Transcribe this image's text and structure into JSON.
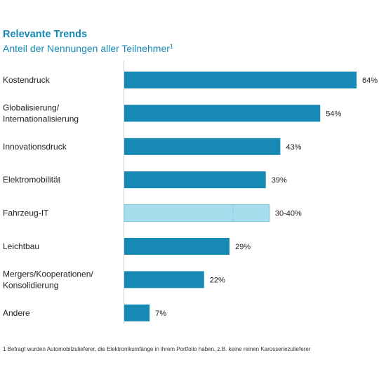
{
  "chart_data": {
    "type": "bar",
    "orientation": "horizontal",
    "title": "Relevante Trends",
    "subtitle": "Anteil der Nennungen aller Teilnehmer",
    "subtitle_superscript": "1",
    "categories": [
      [
        "Kostendruck"
      ],
      [
        "Globalisierung/",
        "Internationalisierung"
      ],
      [
        "Innovationsdruck"
      ],
      [
        "Elektromobilität"
      ],
      [
        "Fahrzeug-IT"
      ],
      [
        "Leichtbau"
      ],
      [
        "Mergers/Kooperationen/",
        "Konsolidierung"
      ],
      [
        "Andere"
      ]
    ],
    "values": [
      64,
      54,
      43,
      39,
      40,
      29,
      22,
      7
    ],
    "range_low": [
      null,
      null,
      null,
      null,
      30,
      null,
      null,
      null
    ],
    "value_labels": [
      "64%",
      "54%",
      "43%",
      "39%",
      "30-40%",
      "29%",
      "22%",
      "7%"
    ],
    "xlim": [
      0,
      64
    ],
    "grid": false,
    "legend": "none",
    "colors": {
      "bar": "#1689b5",
      "bar_range": "#a6deed",
      "bar_range_border": "#7fc9df",
      "title": "#1689b5",
      "text": "#222222",
      "axis": "#cfcfcf"
    },
    "footnote": "1 Befragt wurden Automobilzulieferer, die Elektronikumfänge in ihrem Portfolio haben, z.B. keine reinen Karosseriezulieferer"
  }
}
